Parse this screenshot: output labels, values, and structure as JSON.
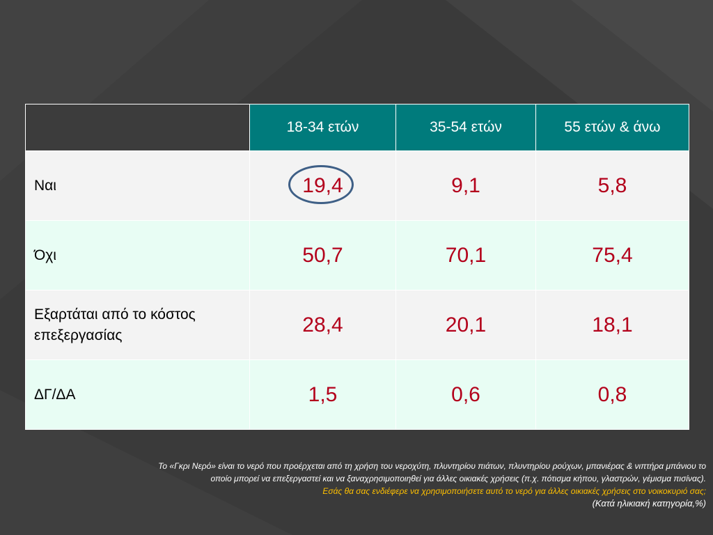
{
  "theme": {
    "background": "#3a3a3a",
    "header_bg": "#007b7c",
    "corner_bg": "#3c3c3c",
    "row_odd_bg": "#f3f3f3",
    "row_even_bg": "#e8fdf4",
    "value_color": "#b3001b",
    "highlight_circle_color": "#3e5f86",
    "question_color": "#ffc000"
  },
  "table": {
    "columns": [
      "18-34 ετών",
      "35-54 ετών",
      "55 ετών & άνω"
    ],
    "rows": [
      {
        "label": "Ναι",
        "values": [
          "19,4",
          "9,1",
          "5,8"
        ]
      },
      {
        "label": "Όχι",
        "values": [
          "50,7",
          "70,1",
          "75,4"
        ]
      },
      {
        "label": "Εξαρτάται από το κόστος επεξεργασίας",
        "values": [
          "28,4",
          "20,1",
          "18,1"
        ]
      },
      {
        "label": "ΔΓ/ΔΑ",
        "values": [
          "1,5",
          "0,6",
          "0,8"
        ]
      }
    ],
    "highlighted_cell": "19,4"
  },
  "footnote": {
    "line1": "Το «Γκρι Νερό» είναι το νερό που προέρχεται από τη χρήση του νεροχύτη, πλυντηρίου πιάτων, πλυντηρίου ρούχων, μπανιέρας & νιπτήρα μπάνιου το",
    "line2": "οποίο μπορεί να επεξεργαστεί και να ξαναχρησιμοποιηθεί για άλλες οικιακές χρήσεις (π.χ. πότισμα κήπου, γλαστρών, γέμισμα πισίνας).",
    "question": "Εσάς θα σας ενδιέφερε να χρησιμοποιήσετε αυτό το νερό για άλλες οικιακές χρήσεις στο νοικοκυριό σας;",
    "subtitle": "(Κατά ηλικιακή κατηγορία,%)"
  }
}
